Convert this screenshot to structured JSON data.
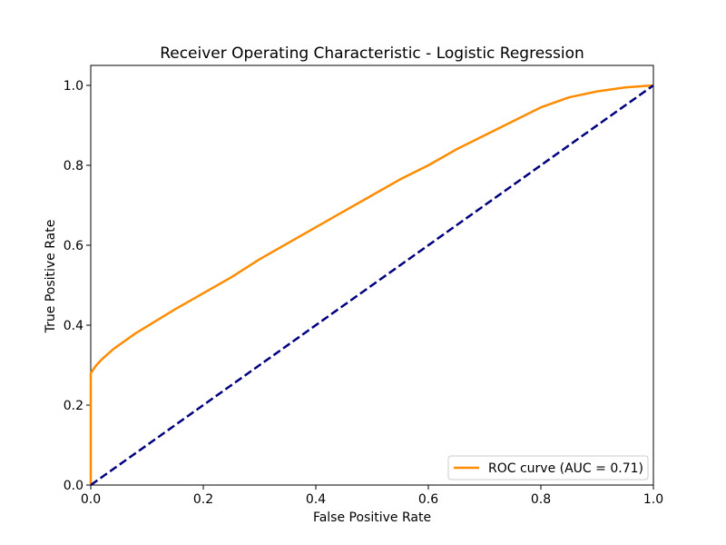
{
  "chart_data": {
    "type": "line",
    "title": "Receiver Operating Characteristic - Logistic Regression",
    "xlabel": "False Positive Rate",
    "ylabel": "True Positive Rate",
    "xlim": [
      0.0,
      1.0
    ],
    "ylim": [
      0.0,
      1.05
    ],
    "x_ticks": [
      "0.0",
      "0.2",
      "0.4",
      "0.6",
      "0.8",
      "1.0"
    ],
    "y_ticks": [
      "0.0",
      "0.2",
      "0.4",
      "0.6",
      "0.8",
      "1.0"
    ],
    "grid": false,
    "legend_position": "lower-right",
    "series": [
      {
        "name": "ROC curve (AUC = 0.71)",
        "color": "#ff8c00",
        "style": "solid",
        "x": [
          0.0,
          0.0,
          0.0,
          0.005,
          0.01,
          0.02,
          0.04,
          0.06,
          0.08,
          0.1,
          0.15,
          0.2,
          0.25,
          0.3,
          0.35,
          0.4,
          0.45,
          0.5,
          0.55,
          0.6,
          0.65,
          0.7,
          0.75,
          0.8,
          0.85,
          0.9,
          0.95,
          1.0
        ],
        "y": [
          0.0,
          0.2,
          0.28,
          0.29,
          0.3,
          0.315,
          0.34,
          0.36,
          0.38,
          0.397,
          0.44,
          0.48,
          0.52,
          0.565,
          0.605,
          0.645,
          0.685,
          0.725,
          0.765,
          0.8,
          0.84,
          0.875,
          0.91,
          0.945,
          0.97,
          0.985,
          0.995,
          1.0
        ]
      },
      {
        "name": "",
        "color": "#000080",
        "style": "dashed",
        "x": [
          0.0,
          1.0
        ],
        "y": [
          0.0,
          1.0
        ]
      }
    ],
    "legend": [
      {
        "label": "ROC curve (AUC = 0.71)",
        "color": "#ff8c00"
      }
    ]
  }
}
